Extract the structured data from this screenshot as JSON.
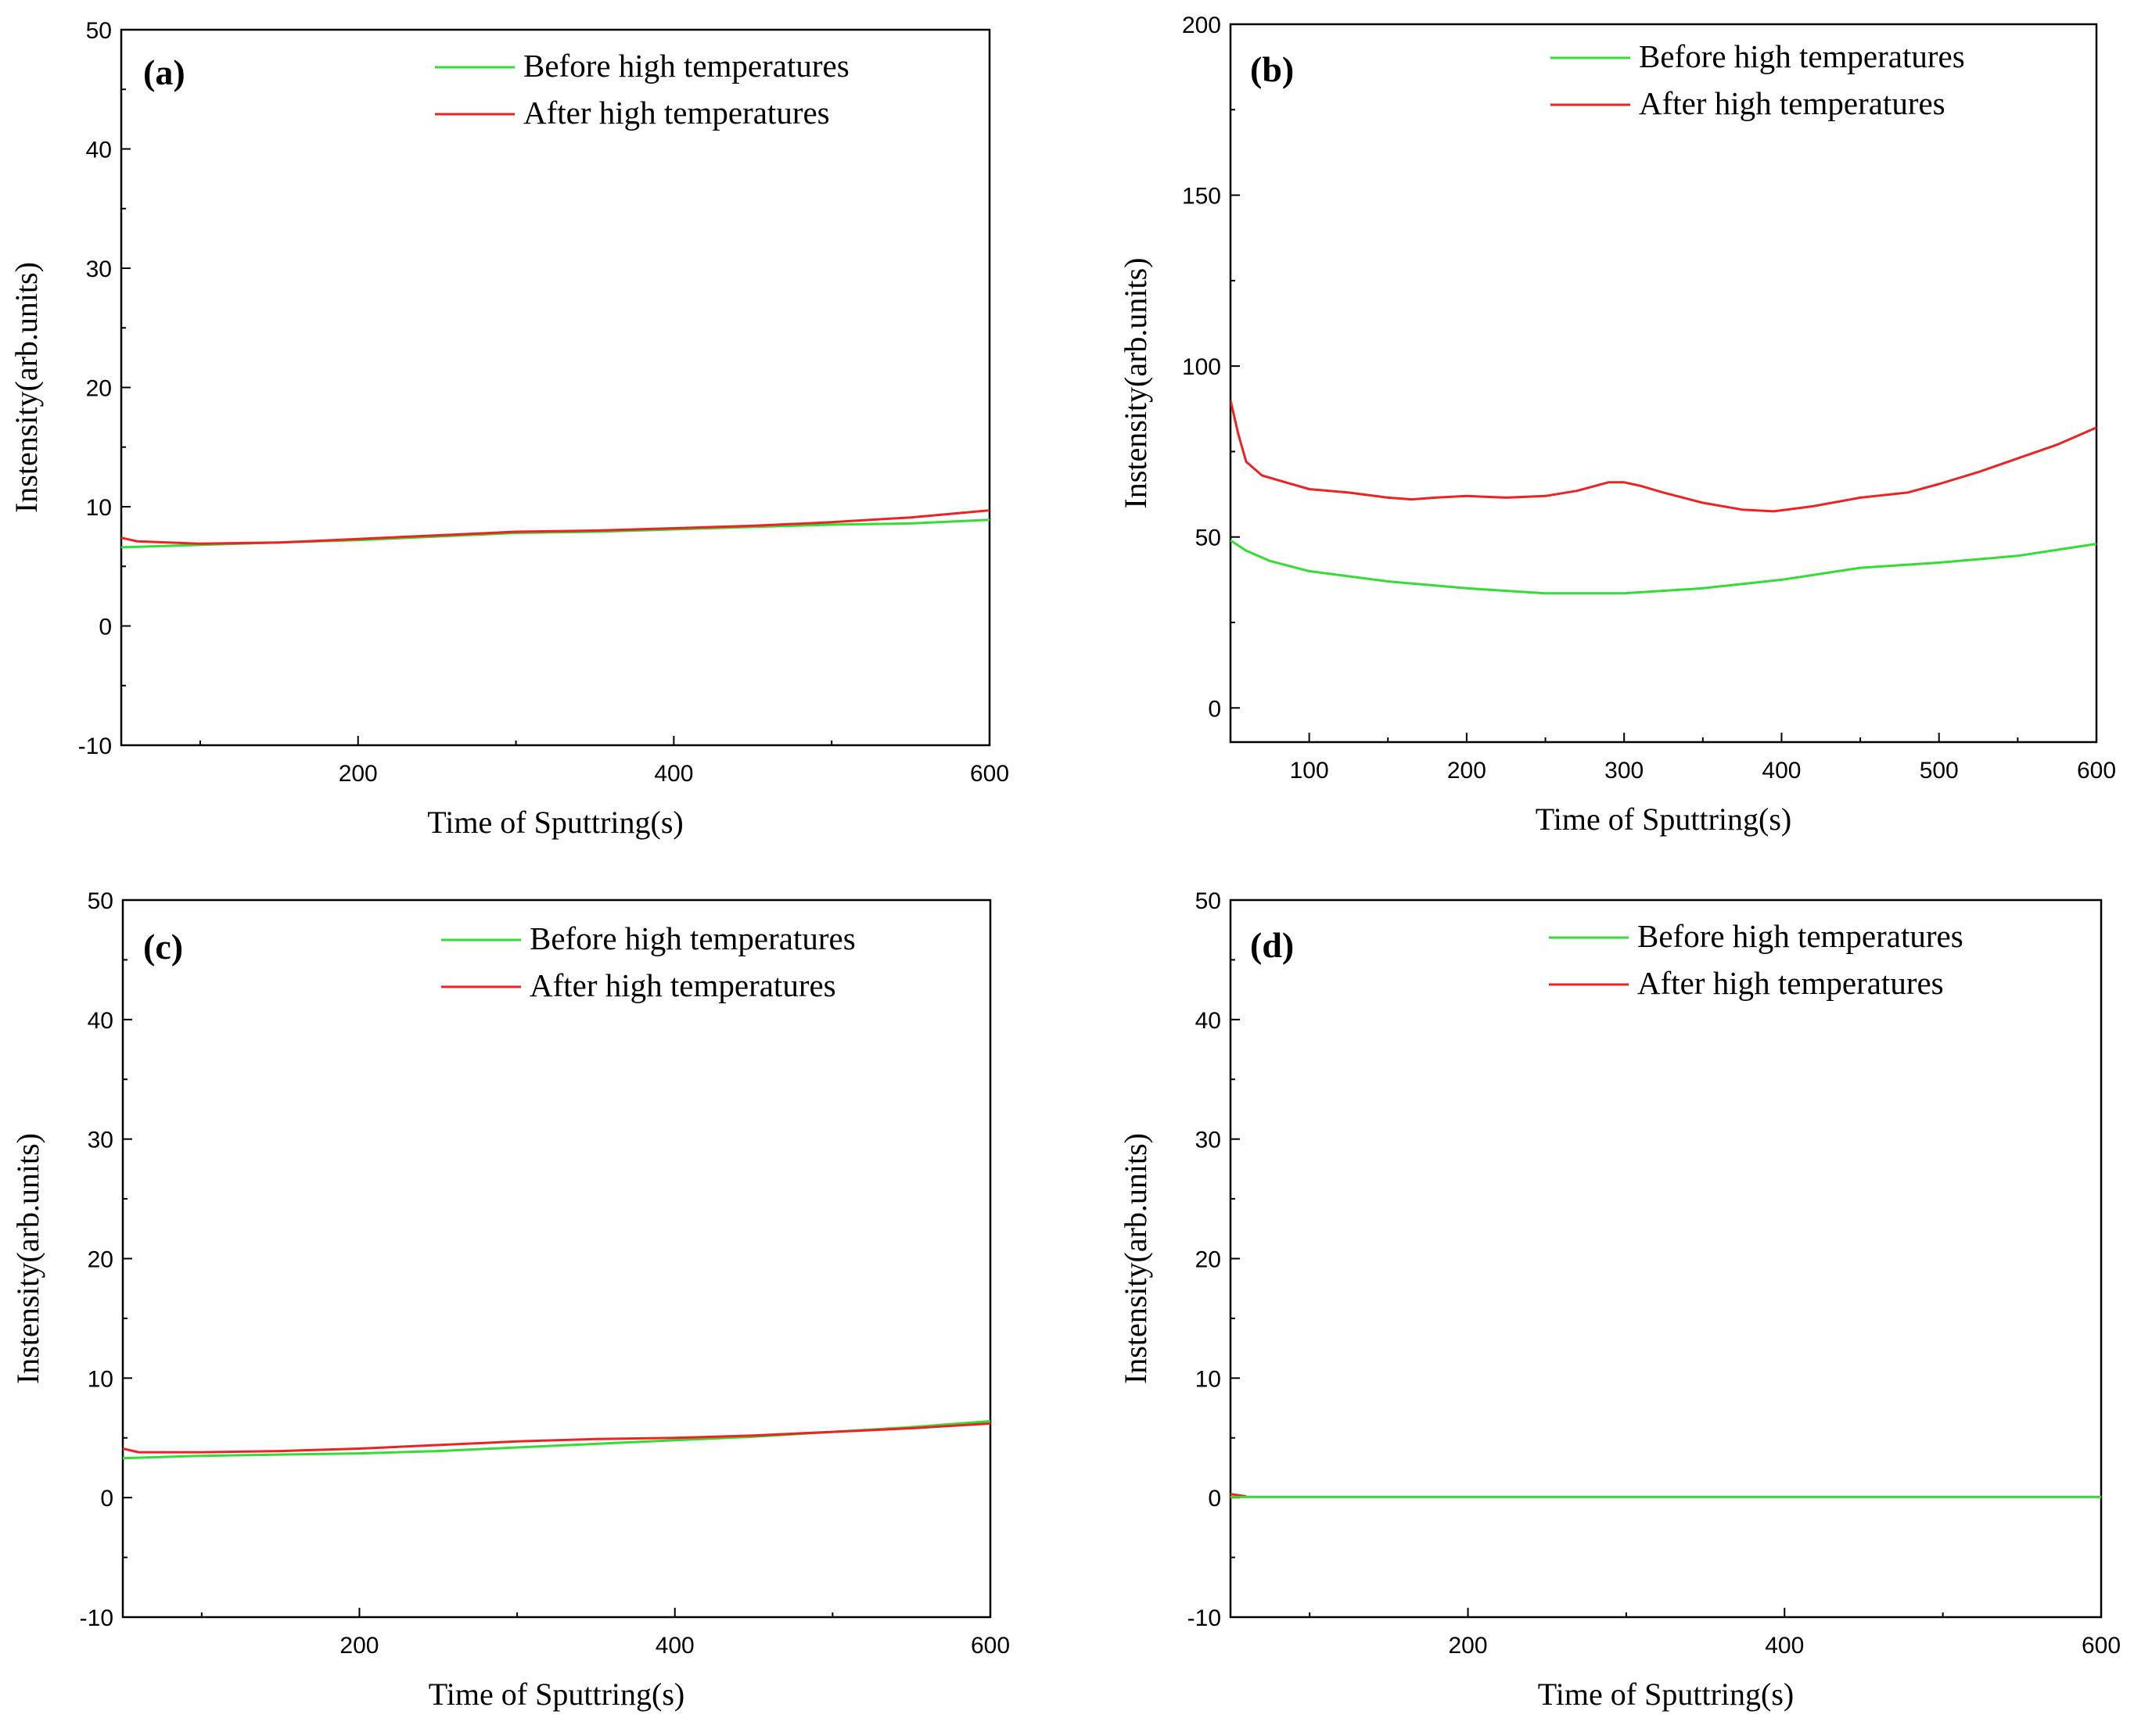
{
  "chart_data": [
    {
      "type": "line",
      "panel_label": "(a)",
      "xlabel": "Time of Sputtring(s)",
      "ylabel": "Instensity(arb.units)",
      "xlim": [
        50,
        600
      ],
      "ylim": [
        -10,
        50
      ],
      "xticks": [
        200,
        400,
        600
      ],
      "yticks": [
        -10,
        0,
        10,
        20,
        30,
        40,
        50
      ],
      "legend_position": "top-right",
      "grid": false,
      "series": [
        {
          "name": "Before high temperatures",
          "color": "#33dd33",
          "x": [
            50,
            100,
            150,
            200,
            250,
            300,
            350,
            400,
            450,
            500,
            550,
            600
          ],
          "y": [
            6.6,
            6.8,
            7.0,
            7.2,
            7.5,
            7.8,
            7.9,
            8.1,
            8.3,
            8.5,
            8.6,
            8.9
          ]
        },
        {
          "name": "After high temperatures",
          "color": "#ee2222",
          "x": [
            50,
            60,
            100,
            150,
            200,
            250,
            300,
            350,
            400,
            450,
            500,
            550,
            600
          ],
          "y": [
            7.4,
            7.1,
            6.9,
            7.0,
            7.3,
            7.6,
            7.9,
            8.0,
            8.2,
            8.4,
            8.7,
            9.1,
            9.7
          ]
        }
      ]
    },
    {
      "type": "line",
      "panel_label": "(b)",
      "xlabel": "Time of Sputtring(s)",
      "ylabel": "Instensity(arb.units)",
      "xlim": [
        50,
        600
      ],
      "ylim": [
        -10,
        200
      ],
      "xticks": [
        100,
        200,
        300,
        400,
        500,
        600
      ],
      "yticks": [
        0,
        50,
        100,
        150,
        200
      ],
      "legend_position": "top-right",
      "grid": false,
      "series": [
        {
          "name": "Before high temperatures",
          "color": "#33dd33",
          "x": [
            50,
            60,
            75,
            100,
            150,
            200,
            250,
            300,
            350,
            400,
            450,
            500,
            550,
            600
          ],
          "y": [
            49,
            46,
            43,
            40,
            37,
            35,
            33.5,
            33.5,
            35,
            37.5,
            41,
            42.5,
            44.5,
            48
          ]
        },
        {
          "name": "After high temperatures",
          "color": "#ee2222",
          "x": [
            50,
            55,
            60,
            70,
            85,
            100,
            125,
            150,
            165,
            180,
            200,
            225,
            250,
            270,
            290,
            300,
            310,
            325,
            350,
            375,
            395,
            420,
            450,
            480,
            500,
            525,
            550,
            575,
            600
          ],
          "y": [
            90,
            80,
            72,
            68,
            66,
            64,
            63,
            61.5,
            61,
            61.5,
            62,
            61.5,
            62,
            63.5,
            66,
            66,
            65,
            63,
            60,
            58,
            57.5,
            59,
            61.5,
            63,
            65.5,
            69,
            73,
            77,
            82
          ]
        }
      ]
    },
    {
      "type": "line",
      "panel_label": "(c)",
      "xlabel": "Time of Sputtring(s)",
      "ylabel": "Instensity(arb.units)",
      "xlim": [
        50,
        600
      ],
      "ylim": [
        -10,
        50
      ],
      "xticks": [
        200,
        400,
        600
      ],
      "yticks": [
        -10,
        0,
        10,
        20,
        30,
        40,
        50
      ],
      "legend_position": "top-right",
      "grid": false,
      "series": [
        {
          "name": "Before high temperatures",
          "color": "#33dd33",
          "x": [
            50,
            100,
            150,
            200,
            250,
            300,
            350,
            400,
            450,
            500,
            550,
            600
          ],
          "y": [
            3.3,
            3.5,
            3.6,
            3.7,
            3.9,
            4.2,
            4.5,
            4.8,
            5.1,
            5.5,
            5.9,
            6.4
          ]
        },
        {
          "name": "After high temperatures",
          "color": "#ee2222",
          "x": [
            50,
            60,
            100,
            150,
            200,
            250,
            300,
            350,
            400,
            450,
            500,
            550,
            600
          ],
          "y": [
            4.1,
            3.8,
            3.8,
            3.9,
            4.1,
            4.4,
            4.7,
            4.9,
            5.0,
            5.2,
            5.5,
            5.8,
            6.2
          ]
        }
      ]
    },
    {
      "type": "line",
      "panel_label": "(d)",
      "xlabel": "Time of Sputtring(s)",
      "ylabel": "Instensity(arb.units)",
      "xlim": [
        50,
        600
      ],
      "ylim": [
        -10,
        50
      ],
      "xticks": [
        200,
        400,
        600
      ],
      "yticks": [
        -10,
        0,
        10,
        20,
        30,
        40,
        50
      ],
      "legend_position": "top-right",
      "grid": false,
      "series": [
        {
          "name": "After high temperatures",
          "color": "#ee2222",
          "x": [
            50,
            55,
            60
          ],
          "y": [
            0.3,
            0.2,
            0.1
          ]
        },
        {
          "name": "Before high temperatures",
          "color": "#33dd33",
          "x": [
            50,
            100,
            200,
            300,
            400,
            500,
            600
          ],
          "y": [
            0.05,
            0.05,
            0.05,
            0.05,
            0.05,
            0.05,
            0.05
          ]
        }
      ]
    }
  ]
}
